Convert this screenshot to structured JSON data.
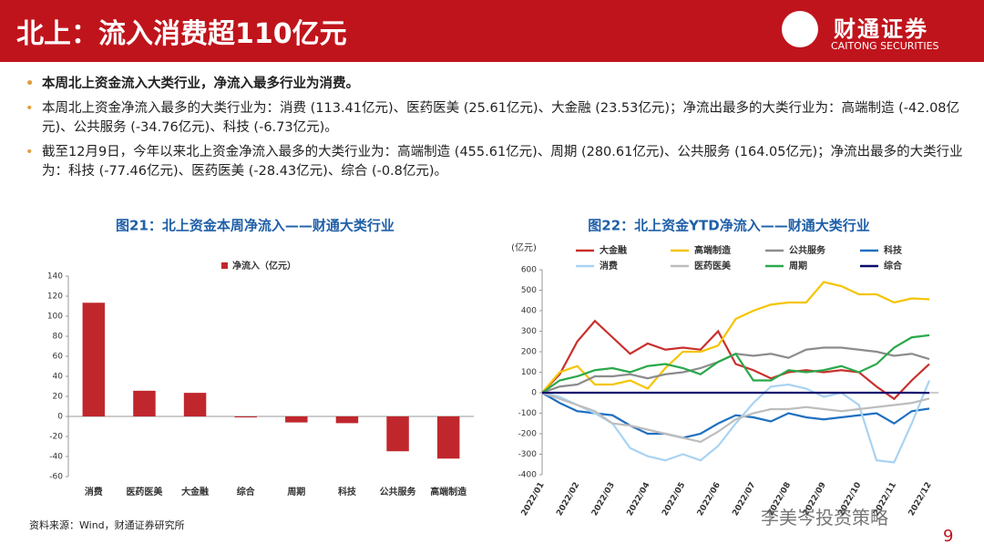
{
  "header": {
    "title": "北上：流入消费超110亿元",
    "logo": "财通证券",
    "logo_en": "CAITONG SECURITIES"
  },
  "bullets": [
    "本周北上资金流入大类行业，净流入最多行业为消费。",
    "本周北上资金净流入最多的大类行业为：消费 (113.41亿元)、医药医美 (25.61亿元)、大金融 (23.53亿元)；净流出最多的大类行业为：高端制造 (-42.08亿元)、公共服务 (-34.76亿元)、科技 (-6.73亿元)。",
    "截至12月9日，今年以来北上资金净流入最多的大类行业为：高端制造 (455.61亿元)、周期 (280.61亿元)、公共服务 (164.05亿元)；净流出最多的大类行业为：科技 (-77.46亿元)、医药医美 (-28.43亿元)、综合 (-0.8亿元)。"
  ],
  "source": "资料来源：Wind，财通证券研究所",
  "page_number": "9",
  "watermark": "李美岑投资策略",
  "chart_data": [
    {
      "type": "bar",
      "title": "图21：北上资金本周净流入——财通大类行业",
      "series": [
        {
          "name": "净流入（亿元）",
          "color": "#c0272d",
          "values": [
            113.41,
            25.61,
            23.53,
            -1,
            -6,
            -6.73,
            -34.76,
            -42.08
          ]
        }
      ],
      "categories": [
        "消费",
        "医药医美",
        "大金融",
        "综合",
        "周期",
        "科技",
        "公共服务",
        "高端制造"
      ],
      "ylim": [
        -60,
        140
      ],
      "yticks": [
        -60,
        -40,
        -20,
        0,
        20,
        40,
        60,
        80,
        100,
        120,
        140
      ],
      "grid": false
    },
    {
      "type": "line",
      "title": "图22：北上资金YTD净流入——财通大类行业",
      "y_label": "(亿元)",
      "categories": [
        "2022/01",
        null,
        "2022/02",
        null,
        "2022/03",
        null,
        "2022/04",
        null,
        "2022/05",
        null,
        "2022/06",
        null,
        "2022/07",
        null,
        "2022/08",
        null,
        "2022/09",
        null,
        "2022/10",
        null,
        "2022/11",
        null,
        "2022/12"
      ],
      "series": [
        {
          "name": "大金融",
          "color": "#c9302c",
          "values": [
            0,
            90,
            250,
            350,
            270,
            190,
            240,
            210,
            220,
            210,
            300,
            140,
            110,
            70,
            100,
            110,
            100,
            110,
            100,
            30,
            -30,
            60,
            140
          ]
        },
        {
          "name": "高端制造",
          "color": "#f5c400",
          "values": [
            0,
            100,
            130,
            40,
            40,
            60,
            20,
            120,
            200,
            200,
            230,
            360,
            400,
            430,
            440,
            440,
            540,
            520,
            480,
            480,
            440,
            460,
            455.61
          ]
        },
        {
          "name": "公共服务",
          "color": "#8c8c8c",
          "values": [
            0,
            30,
            40,
            80,
            80,
            90,
            70,
            90,
            100,
            120,
            150,
            190,
            180,
            190,
            170,
            210,
            220,
            220,
            210,
            200,
            180,
            190,
            164.05
          ]
        },
        {
          "name": "科技",
          "color": "#1f70c1",
          "values": [
            0,
            -50,
            -90,
            -100,
            -110,
            -160,
            -200,
            -200,
            -220,
            -200,
            -150,
            -110,
            -120,
            -140,
            -100,
            -120,
            -130,
            -120,
            -110,
            -100,
            -150,
            -90,
            -77.46
          ]
        },
        {
          "name": "消费",
          "color": "#a9d3f2",
          "values": [
            0,
            -20,
            -60,
            -100,
            -150,
            -270,
            -310,
            -330,
            -300,
            -330,
            -260,
            -150,
            -50,
            30,
            40,
            20,
            -20,
            0,
            -60,
            -330,
            -340,
            -150,
            60
          ]
        },
        {
          "name": "医药医美",
          "color": "#bdbdbd",
          "values": [
            0,
            -30,
            -60,
            -90,
            -150,
            -160,
            -180,
            -200,
            -220,
            -240,
            -190,
            -130,
            -100,
            -80,
            -80,
            -70,
            -80,
            -90,
            -80,
            -70,
            -60,
            -50,
            -28.43
          ]
        },
        {
          "name": "周期",
          "color": "#2aa84a",
          "values": [
            0,
            60,
            80,
            110,
            120,
            100,
            130,
            140,
            120,
            90,
            150,
            190,
            60,
            60,
            110,
            100,
            110,
            130,
            100,
            140,
            220,
            270,
            280.61
          ]
        },
        {
          "name": "综合",
          "color": "#0b0b6e",
          "values": [
            0,
            0,
            0,
            0,
            0,
            0,
            0,
            0,
            0,
            0,
            0,
            0,
            0,
            0,
            0,
            0,
            0,
            0,
            0,
            0,
            0,
            0,
            -0.8
          ]
        }
      ],
      "ylim": [
        -400,
        600
      ],
      "yticks": [
        -400,
        -300,
        -200,
        -100,
        0,
        100,
        200,
        300,
        400,
        500,
        600
      ],
      "grid": false
    }
  ]
}
